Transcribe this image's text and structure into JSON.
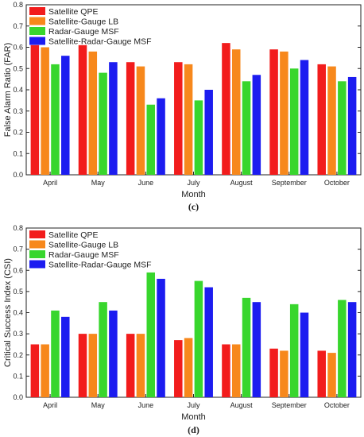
{
  "colors": {
    "s1": "#f21c1c",
    "s2": "#f7881c",
    "s3": "#38d62d",
    "s4": "#1c1cf0"
  },
  "chart_data": [
    {
      "type": "bar",
      "panel_label": "(c)",
      "categories": [
        "April",
        "May",
        "June",
        "July",
        "August",
        "September",
        "October"
      ],
      "xlabel": "Month",
      "ylabel": "False Alarm Ratio (FAR)",
      "ylim": [
        0,
        0.8
      ],
      "yticks": [
        "0.0",
        "0.1",
        "0.2",
        "0.3",
        "0.4",
        "0.5",
        "0.6",
        "0.7",
        "0.8"
      ],
      "legend_position": "top-left",
      "grid": false,
      "series": [
        {
          "name": "Satellite QPE",
          "values": [
            0.61,
            0.61,
            0.53,
            0.53,
            0.62,
            0.59,
            0.52
          ]
        },
        {
          "name": "Satellite-Gauge LB",
          "values": [
            0.6,
            0.58,
            0.51,
            0.52,
            0.59,
            0.58,
            0.51
          ]
        },
        {
          "name": "Radar-Gauge MSF",
          "values": [
            0.52,
            0.48,
            0.33,
            0.35,
            0.44,
            0.5,
            0.44
          ]
        },
        {
          "name": "Satellite-Radar-Gauge MSF",
          "values": [
            0.56,
            0.53,
            0.36,
            0.4,
            0.47,
            0.54,
            0.46
          ]
        }
      ]
    },
    {
      "type": "bar",
      "panel_label": "(d)",
      "categories": [
        "April",
        "May",
        "June",
        "July",
        "August",
        "September",
        "October"
      ],
      "xlabel": "Month",
      "ylabel": "Critical Success Index (CSI)",
      "ylim": [
        0,
        0.8
      ],
      "yticks": [
        "0.0",
        "0.1",
        "0.2",
        "0.3",
        "0.4",
        "0.5",
        "0.6",
        "0.7",
        "0.8"
      ],
      "legend_position": "top-left",
      "grid": false,
      "series": [
        {
          "name": "Satellite QPE",
          "values": [
            0.25,
            0.3,
            0.3,
            0.27,
            0.25,
            0.23,
            0.22
          ]
        },
        {
          "name": "Satellite-Gauge LB",
          "values": [
            0.25,
            0.3,
            0.3,
            0.28,
            0.25,
            0.22,
            0.21
          ]
        },
        {
          "name": "Radar-Gauge MSF",
          "values": [
            0.41,
            0.45,
            0.59,
            0.55,
            0.47,
            0.44,
            0.46
          ]
        },
        {
          "name": "Satellite-Radar-Gauge MSF",
          "values": [
            0.38,
            0.41,
            0.56,
            0.52,
            0.45,
            0.4,
            0.45
          ]
        }
      ]
    }
  ]
}
